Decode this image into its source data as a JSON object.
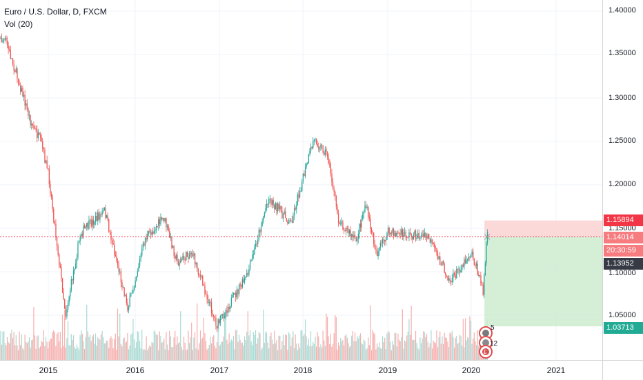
{
  "legend": {
    "title": "Euro / U.S. Dollar, D, FXCM",
    "indicator": "Vol (20)"
  },
  "price_axis": {
    "ticks": [
      "1.40000",
      "1.35000",
      "1.30000",
      "1.25000",
      "1.20000",
      "1.15000",
      "1.10000",
      "1.05000"
    ],
    "labels": {
      "stop": {
        "text": "1.15894",
        "color": "#f23645"
      },
      "entry": {
        "text": "1.14014",
        "color": "#f77c80"
      },
      "countdown": {
        "text": "20:30:59",
        "color": "#f77c80"
      },
      "last": {
        "text": "1.13952",
        "color": "#363a45"
      },
      "target": {
        "text": "1.03713",
        "color": "#22ab94"
      }
    }
  },
  "time_axis": {
    "ticks": [
      "2015",
      "2016",
      "2017",
      "2018",
      "2019",
      "2020",
      "2021"
    ]
  },
  "events": {
    "marker1_count": "5",
    "marker2_count": "12",
    "marker3_label": "£"
  },
  "colors": {
    "up": "#26a69a",
    "down": "#ef5350",
    "vol_up": "#a8d9d3",
    "vol_down": "#f5aeac",
    "risk_zone": "#fbd2d2",
    "reward_zone": "#cdeccf"
  },
  "chart_data": {
    "type": "candlestick",
    "symbol": "EURUSD",
    "timeframe": "D",
    "ylim": [
      1.0,
      1.42
    ],
    "x_range": [
      "2014-05-01",
      "2021-06-20"
    ],
    "price_path": [
      [
        "2014-05-06",
        1.37
      ],
      [
        "2014-07-01",
        1.365
      ],
      [
        "2014-09-01",
        1.313
      ],
      [
        "2014-10-15",
        1.273
      ],
      [
        "2014-12-01",
        1.247
      ],
      [
        "2015-01-01",
        1.21
      ],
      [
        "2015-03-13",
        1.051
      ],
      [
        "2015-05-15",
        1.145
      ],
      [
        "2015-08-24",
        1.17
      ],
      [
        "2015-11-30",
        1.058
      ],
      [
        "2016-02-11",
        1.138
      ],
      [
        "2016-05-03",
        1.162
      ],
      [
        "2016-07-01",
        1.11
      ],
      [
        "2016-09-01",
        1.123
      ],
      [
        "2016-12-20",
        1.038
      ],
      [
        "2017-02-15",
        1.064
      ],
      [
        "2017-05-01",
        1.095
      ],
      [
        "2017-08-01",
        1.185
      ],
      [
        "2017-11-07",
        1.156
      ],
      [
        "2018-02-16",
        1.253
      ],
      [
        "2018-04-15",
        1.235
      ],
      [
        "2018-06-01",
        1.16
      ],
      [
        "2018-08-15",
        1.135
      ],
      [
        "2018-09-25",
        1.178
      ],
      [
        "2018-11-12",
        1.121
      ],
      [
        "2019-01-01",
        1.145
      ],
      [
        "2019-06-25",
        1.14
      ],
      [
        "2019-09-30",
        1.089
      ],
      [
        "2019-12-31",
        1.123
      ],
      [
        "2020-02-20",
        1.078
      ],
      [
        "2020-03-09",
        1.149
      ],
      [
        "2020-03-10",
        1.1395
      ]
    ],
    "position": {
      "entry": 1.14014,
      "stop": 1.15894,
      "target": 1.03713,
      "start": "2020-02-27",
      "end": "2021-06-20"
    },
    "last_price": 1.13952,
    "volume_indicator": "Vol (20)"
  }
}
